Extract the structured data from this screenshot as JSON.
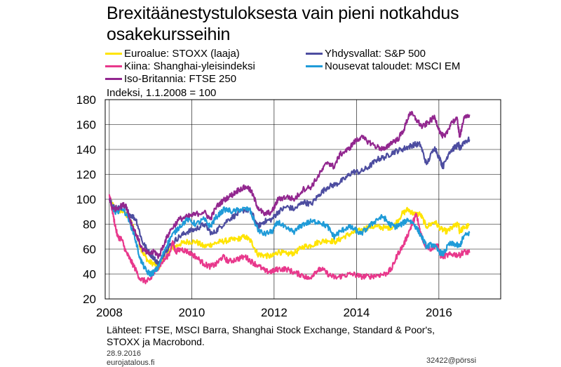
{
  "title_line1": "Brexitäänestystuloksesta vain pieni notkahdus",
  "title_line2": "osakekursseihin",
  "ylabel_note": "Indeksi, 1.1.2008 = 100",
  "source_line1": "Lähteet: FTSE, MSCI Barra, Shanghai Stock Exchange, Standard & Poor's,",
  "source_line2": "STOXX ja Macrobond.",
  "date": "28.9.2016",
  "site": "eurojatalous.fi",
  "code": "32422@pörssi",
  "chart_data": {
    "type": "line",
    "ylim": [
      20,
      180
    ],
    "xlim": [
      2007.9,
      2017.5
    ],
    "yticks": [
      20,
      40,
      60,
      80,
      100,
      120,
      140,
      160,
      180
    ],
    "xticks": [
      2008,
      2010,
      2012,
      2014,
      2016
    ],
    "grid": true,
    "legend_placement": "top",
    "series": [
      {
        "name": "Euroalue: STOXX (laaja)",
        "color": "#ffe400",
        "points": [
          [
            2008.0,
            100
          ],
          [
            2008.15,
            92
          ],
          [
            2008.35,
            90
          ],
          [
            2008.5,
            84
          ],
          [
            2008.65,
            72
          ],
          [
            2008.8,
            58
          ],
          [
            2008.95,
            50
          ],
          [
            2009.1,
            48
          ],
          [
            2009.2,
            45
          ],
          [
            2009.35,
            56
          ],
          [
            2009.5,
            60
          ],
          [
            2009.7,
            64
          ],
          [
            2009.9,
            66
          ],
          [
            2010.1,
            66
          ],
          [
            2010.3,
            62
          ],
          [
            2010.5,
            64
          ],
          [
            2010.7,
            66
          ],
          [
            2010.9,
            67
          ],
          [
            2011.1,
            68
          ],
          [
            2011.3,
            70
          ],
          [
            2011.45,
            66
          ],
          [
            2011.6,
            56
          ],
          [
            2011.75,
            55
          ],
          [
            2011.95,
            54
          ],
          [
            2012.1,
            58
          ],
          [
            2012.3,
            56
          ],
          [
            2012.5,
            57
          ],
          [
            2012.7,
            62
          ],
          [
            2012.9,
            63
          ],
          [
            2013.1,
            66
          ],
          [
            2013.3,
            67
          ],
          [
            2013.5,
            66
          ],
          [
            2013.7,
            70
          ],
          [
            2013.9,
            73
          ],
          [
            2014.1,
            75
          ],
          [
            2014.3,
            78
          ],
          [
            2014.5,
            78
          ],
          [
            2014.7,
            77
          ],
          [
            2014.9,
            78
          ],
          [
            2015.1,
            88
          ],
          [
            2015.25,
            92
          ],
          [
            2015.4,
            88
          ],
          [
            2015.55,
            88
          ],
          [
            2015.7,
            78
          ],
          [
            2015.9,
            82
          ],
          [
            2016.05,
            76
          ],
          [
            2016.2,
            74
          ],
          [
            2016.35,
            78
          ],
          [
            2016.48,
            80
          ],
          [
            2016.5,
            74
          ],
          [
            2016.6,
            77
          ],
          [
            2016.74,
            79
          ]
        ]
      },
      {
        "name": "Yhdysvallat: S&P 500",
        "color": "#4d4da0",
        "points": [
          [
            2008.0,
            100
          ],
          [
            2008.15,
            92
          ],
          [
            2008.35,
            94
          ],
          [
            2008.5,
            88
          ],
          [
            2008.65,
            84
          ],
          [
            2008.8,
            66
          ],
          [
            2008.95,
            58
          ],
          [
            2009.1,
            52
          ],
          [
            2009.2,
            48
          ],
          [
            2009.35,
            58
          ],
          [
            2009.5,
            64
          ],
          [
            2009.7,
            70
          ],
          [
            2009.9,
            74
          ],
          [
            2010.1,
            76
          ],
          [
            2010.3,
            80
          ],
          [
            2010.5,
            72
          ],
          [
            2010.7,
            78
          ],
          [
            2010.9,
            84
          ],
          [
            2011.1,
            88
          ],
          [
            2011.3,
            92
          ],
          [
            2011.45,
            90
          ],
          [
            2011.6,
            78
          ],
          [
            2011.75,
            82
          ],
          [
            2011.95,
            84
          ],
          [
            2012.1,
            90
          ],
          [
            2012.3,
            94
          ],
          [
            2012.5,
            92
          ],
          [
            2012.7,
            98
          ],
          [
            2012.9,
            96
          ],
          [
            2013.1,
            104
          ],
          [
            2013.3,
            110
          ],
          [
            2013.5,
            112
          ],
          [
            2013.7,
            116
          ],
          [
            2013.9,
            122
          ],
          [
            2014.1,
            122
          ],
          [
            2014.3,
            126
          ],
          [
            2014.5,
            132
          ],
          [
            2014.7,
            134
          ],
          [
            2014.9,
            138
          ],
          [
            2015.1,
            140
          ],
          [
            2015.25,
            142
          ],
          [
            2015.4,
            144
          ],
          [
            2015.55,
            144
          ],
          [
            2015.7,
            128
          ],
          [
            2015.9,
            142
          ],
          [
            2016.05,
            130
          ],
          [
            2016.1,
            126
          ],
          [
            2016.25,
            138
          ],
          [
            2016.4,
            142
          ],
          [
            2016.48,
            144
          ],
          [
            2016.5,
            140
          ],
          [
            2016.6,
            146
          ],
          [
            2016.74,
            148
          ]
        ]
      },
      {
        "name": "Kiina: Shanghai-yleisindeksi",
        "color": "#e8388c",
        "points": [
          [
            2008.0,
            104
          ],
          [
            2008.1,
            86
          ],
          [
            2008.2,
            70
          ],
          [
            2008.3,
            68
          ],
          [
            2008.4,
            58
          ],
          [
            2008.5,
            52
          ],
          [
            2008.6,
            46
          ],
          [
            2008.75,
            36
          ],
          [
            2008.9,
            34
          ],
          [
            2009.0,
            36
          ],
          [
            2009.15,
            44
          ],
          [
            2009.3,
            50
          ],
          [
            2009.45,
            56
          ],
          [
            2009.55,
            66
          ],
          [
            2009.6,
            58
          ],
          [
            2009.75,
            60
          ],
          [
            2009.9,
            58
          ],
          [
            2010.1,
            54
          ],
          [
            2010.3,
            48
          ],
          [
            2010.45,
            46
          ],
          [
            2010.6,
            48
          ],
          [
            2010.75,
            54
          ],
          [
            2010.9,
            50
          ],
          [
            2011.1,
            52
          ],
          [
            2011.3,
            54
          ],
          [
            2011.45,
            50
          ],
          [
            2011.6,
            47
          ],
          [
            2011.8,
            42
          ],
          [
            2011.95,
            42
          ],
          [
            2012.1,
            44
          ],
          [
            2012.3,
            44
          ],
          [
            2012.5,
            41
          ],
          [
            2012.7,
            39
          ],
          [
            2012.85,
            36
          ],
          [
            2013.0,
            42
          ],
          [
            2013.15,
            44
          ],
          [
            2013.35,
            39
          ],
          [
            2013.5,
            37
          ],
          [
            2013.7,
            39
          ],
          [
            2013.9,
            40
          ],
          [
            2014.1,
            38
          ],
          [
            2014.3,
            38
          ],
          [
            2014.5,
            39
          ],
          [
            2014.7,
            40
          ],
          [
            2014.85,
            44
          ],
          [
            2015.0,
            56
          ],
          [
            2015.15,
            64
          ],
          [
            2015.3,
            76
          ],
          [
            2015.4,
            84
          ],
          [
            2015.45,
            88
          ],
          [
            2015.55,
            74
          ],
          [
            2015.65,
            64
          ],
          [
            2015.8,
            60
          ],
          [
            2015.95,
            64
          ],
          [
            2016.05,
            54
          ],
          [
            2016.2,
            55
          ],
          [
            2016.35,
            56
          ],
          [
            2016.5,
            55
          ],
          [
            2016.6,
            58
          ],
          [
            2016.74,
            57
          ]
        ]
      },
      {
        "name": "Nousevat taloudet: MSCI EM",
        "color": "#1f9bd8",
        "points": [
          [
            2008.0,
            100
          ],
          [
            2008.15,
            88
          ],
          [
            2008.3,
            94
          ],
          [
            2008.45,
            86
          ],
          [
            2008.6,
            72
          ],
          [
            2008.75,
            52
          ],
          [
            2008.9,
            42
          ],
          [
            2009.0,
            40
          ],
          [
            2009.1,
            42
          ],
          [
            2009.2,
            46
          ],
          [
            2009.35,
            60
          ],
          [
            2009.5,
            70
          ],
          [
            2009.7,
            78
          ],
          [
            2009.9,
            84
          ],
          [
            2010.1,
            80
          ],
          [
            2010.3,
            84
          ],
          [
            2010.45,
            78
          ],
          [
            2010.6,
            86
          ],
          [
            2010.8,
            92
          ],
          [
            2011.0,
            90
          ],
          [
            2011.2,
            92
          ],
          [
            2011.4,
            92
          ],
          [
            2011.6,
            76
          ],
          [
            2011.75,
            72
          ],
          [
            2011.95,
            74
          ],
          [
            2012.1,
            82
          ],
          [
            2012.3,
            76
          ],
          [
            2012.5,
            74
          ],
          [
            2012.7,
            80
          ],
          [
            2012.9,
            82
          ],
          [
            2013.1,
            82
          ],
          [
            2013.3,
            78
          ],
          [
            2013.45,
            70
          ],
          [
            2013.6,
            74
          ],
          [
            2013.8,
            78
          ],
          [
            2013.95,
            76
          ],
          [
            2014.1,
            72
          ],
          [
            2014.3,
            78
          ],
          [
            2014.5,
            84
          ],
          [
            2014.65,
            86
          ],
          [
            2014.8,
            80
          ],
          [
            2014.95,
            78
          ],
          [
            2015.1,
            80
          ],
          [
            2015.25,
            84
          ],
          [
            2015.4,
            80
          ],
          [
            2015.55,
            72
          ],
          [
            2015.7,
            62
          ],
          [
            2015.85,
            64
          ],
          [
            2016.0,
            58
          ],
          [
            2016.1,
            56
          ],
          [
            2016.25,
            64
          ],
          [
            2016.4,
            64
          ],
          [
            2016.5,
            62
          ],
          [
            2016.6,
            70
          ],
          [
            2016.74,
            73
          ]
        ]
      },
      {
        "name": "Iso-Britannia: FTSE 250",
        "color": "#92278f",
        "points": [
          [
            2008.0,
            100
          ],
          [
            2008.1,
            92
          ],
          [
            2008.25,
            94
          ],
          [
            2008.4,
            96
          ],
          [
            2008.5,
            84
          ],
          [
            2008.65,
            72
          ],
          [
            2008.8,
            60
          ],
          [
            2008.95,
            56
          ],
          [
            2009.1,
            58
          ],
          [
            2009.2,
            54
          ],
          [
            2009.35,
            66
          ],
          [
            2009.5,
            76
          ],
          [
            2009.7,
            84
          ],
          [
            2009.9,
            86
          ],
          [
            2010.1,
            88
          ],
          [
            2010.3,
            90
          ],
          [
            2010.45,
            84
          ],
          [
            2010.6,
            94
          ],
          [
            2010.8,
            100
          ],
          [
            2011.0,
            104
          ],
          [
            2011.15,
            108
          ],
          [
            2011.35,
            110
          ],
          [
            2011.45,
            106
          ],
          [
            2011.6,
            94
          ],
          [
            2011.75,
            88
          ],
          [
            2011.95,
            90
          ],
          [
            2012.1,
            100
          ],
          [
            2012.3,
            102
          ],
          [
            2012.5,
            100
          ],
          [
            2012.7,
            108
          ],
          [
            2012.9,
            110
          ],
          [
            2013.1,
            120
          ],
          [
            2013.3,
            130
          ],
          [
            2013.45,
            126
          ],
          [
            2013.6,
            136
          ],
          [
            2013.8,
            140
          ],
          [
            2013.95,
            146
          ],
          [
            2014.1,
            150
          ],
          [
            2014.3,
            146
          ],
          [
            2014.5,
            142
          ],
          [
            2014.7,
            140
          ],
          [
            2014.85,
            146
          ],
          [
            2015.0,
            148
          ],
          [
            2015.15,
            156
          ],
          [
            2015.3,
            170
          ],
          [
            2015.45,
            164
          ],
          [
            2015.6,
            158
          ],
          [
            2015.75,
            162
          ],
          [
            2015.9,
            166
          ],
          [
            2016.05,
            152
          ],
          [
            2016.15,
            150
          ],
          [
            2016.3,
            162
          ],
          [
            2016.45,
            164
          ],
          [
            2016.5,
            150
          ],
          [
            2016.6,
            164
          ],
          [
            2016.74,
            168
          ]
        ]
      }
    ]
  }
}
